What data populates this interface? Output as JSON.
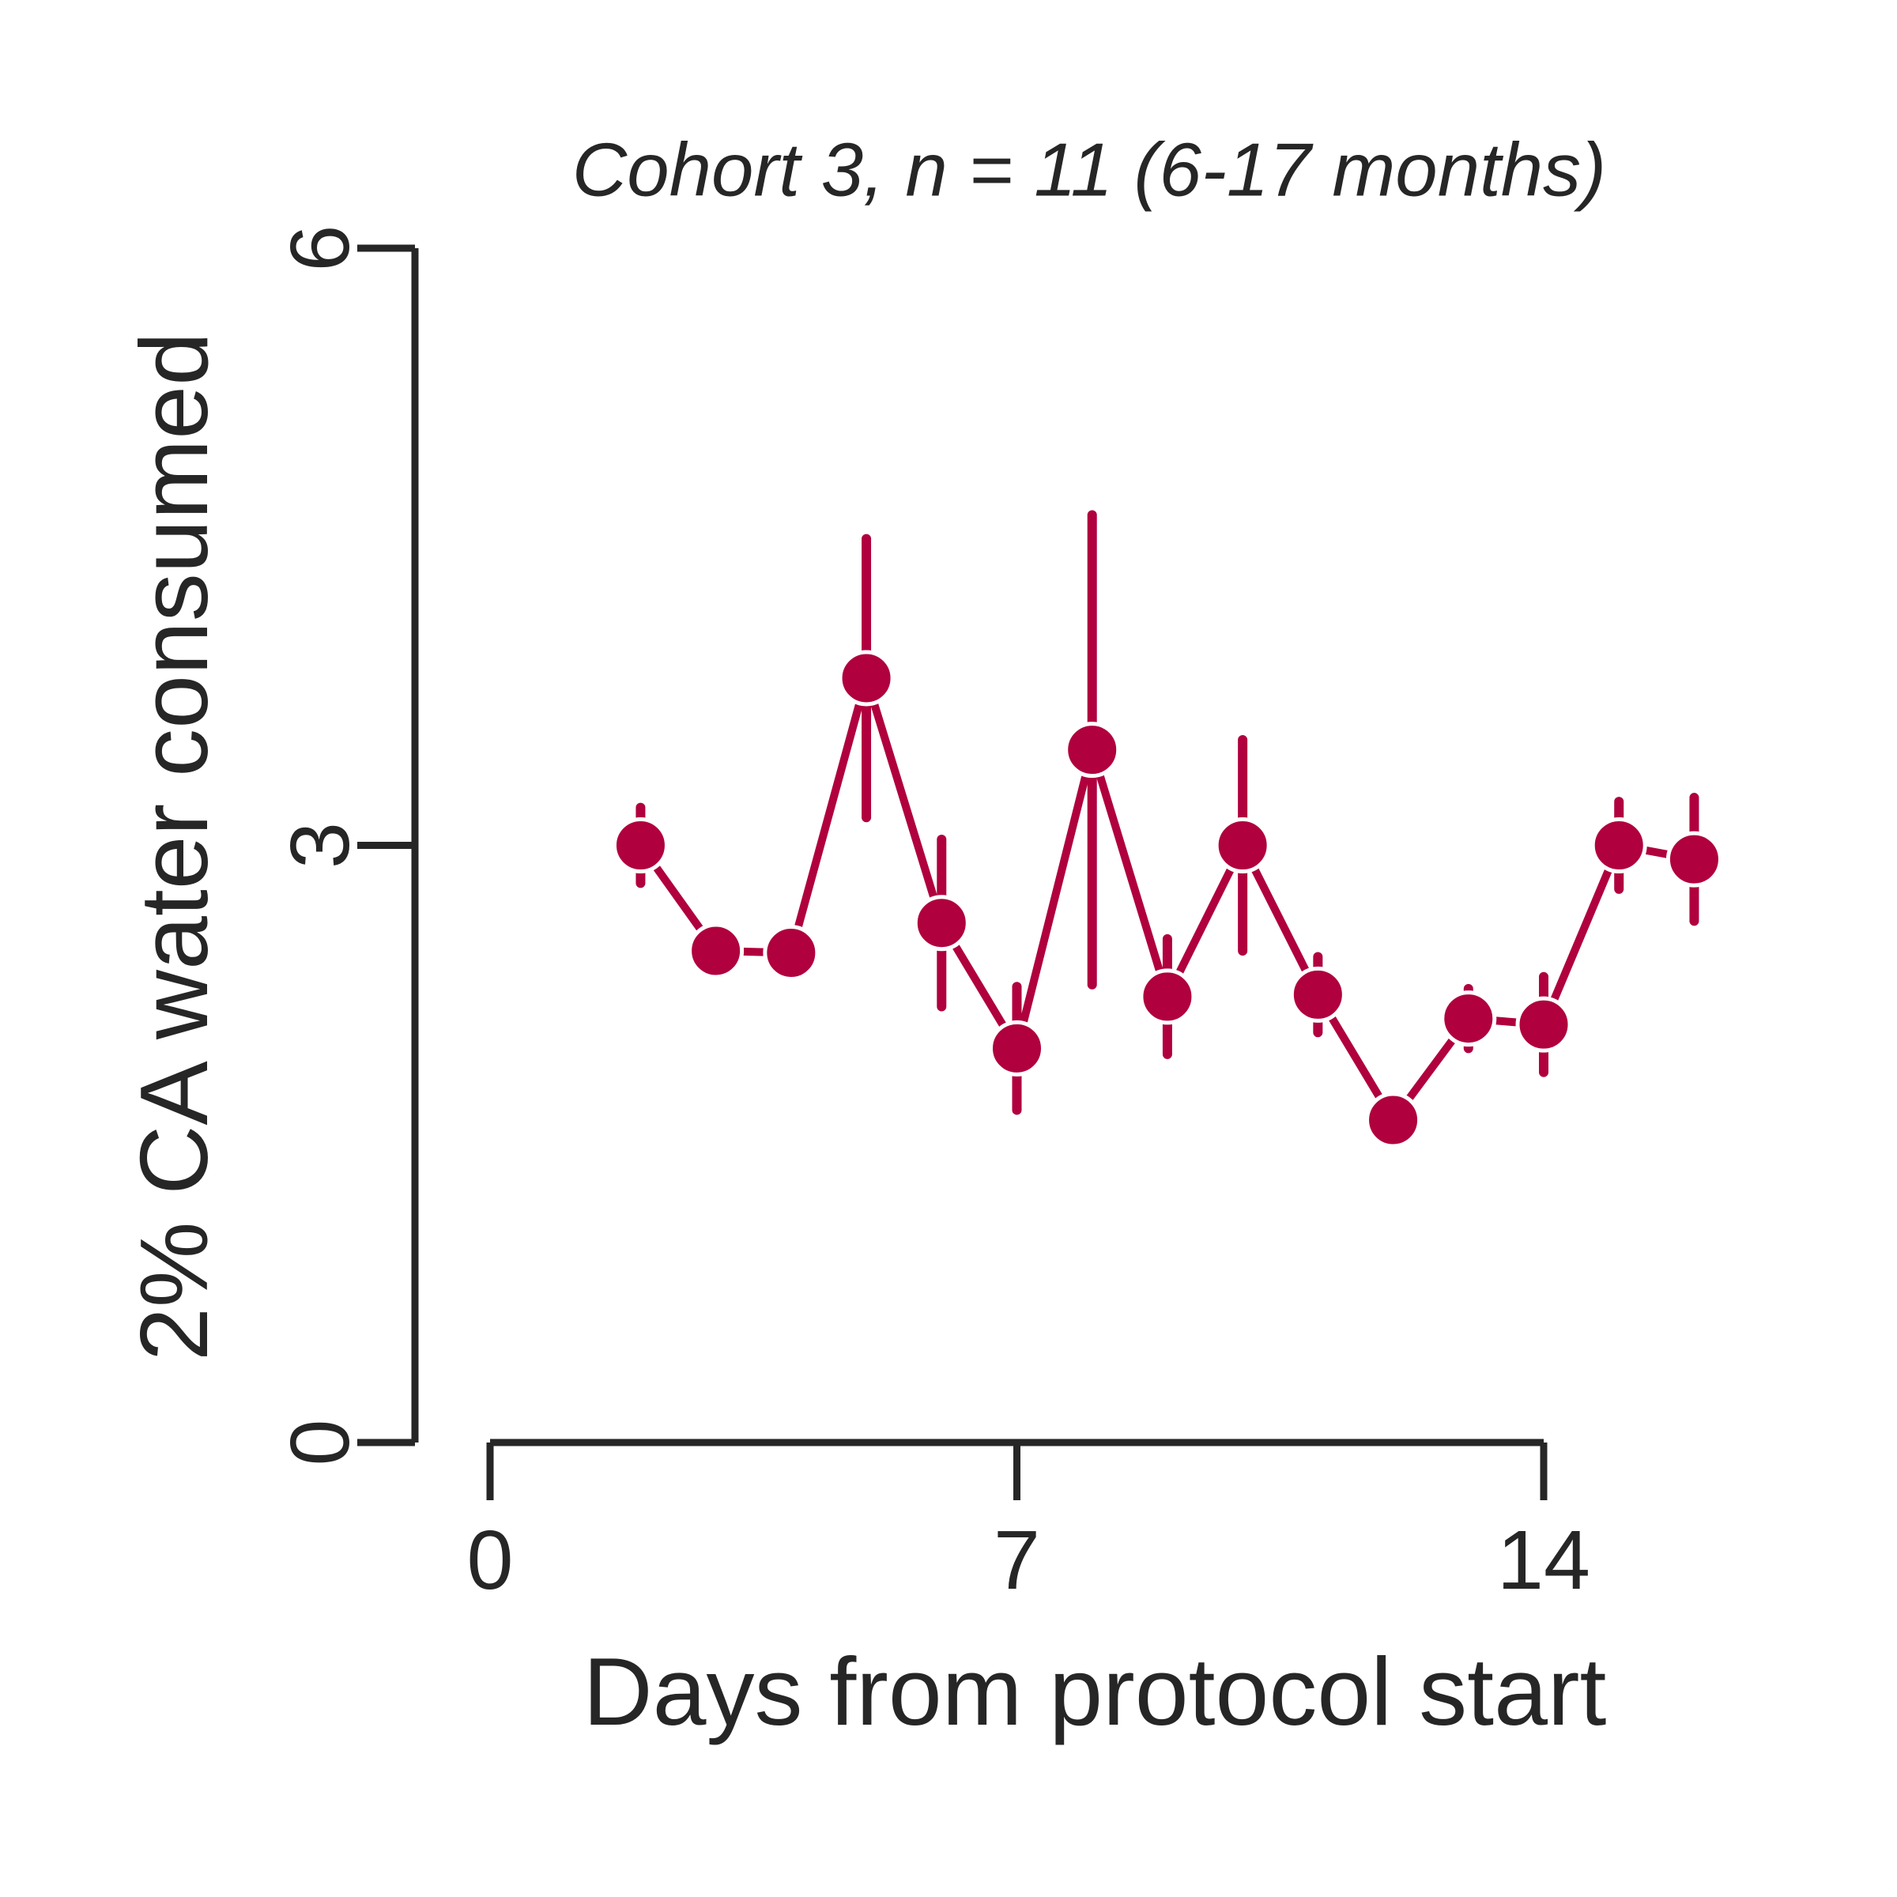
{
  "chart_data": {
    "type": "line",
    "title": "Cohort 3, n = 11 (6-17 months)",
    "xlabel": "Days from protocol start",
    "ylabel": "2% CA water consumed",
    "x": [
      2,
      3,
      4,
      5,
      6,
      7,
      8,
      9,
      10,
      11,
      12,
      13,
      14,
      15,
      16
    ],
    "values": [
      3.0,
      2.47,
      2.46,
      3.84,
      2.61,
      1.98,
      3.48,
      2.24,
      3.0,
      2.25,
      1.62,
      2.13,
      2.1,
      3.0,
      2.93
    ],
    "errors": [
      0.19,
      0.05,
      0.05,
      0.7,
      0.42,
      0.31,
      1.18,
      0.29,
      0.53,
      0.19,
      0.1,
      0.15,
      0.24,
      0.22,
      0.31
    ],
    "color": "#b0003e",
    "xlim": [
      0,
      14
    ],
    "xticks": [
      0,
      7,
      14
    ],
    "ylim": [
      0,
      6
    ],
    "yticks": [
      0,
      3,
      6
    ]
  }
}
